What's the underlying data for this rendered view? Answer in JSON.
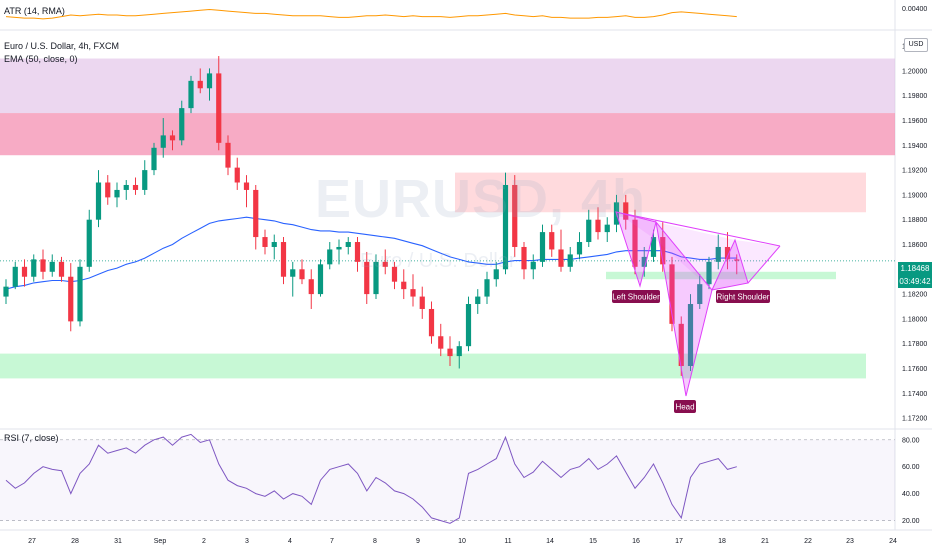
{
  "header": {
    "atr_label": "ATR (14, RMA)",
    "symbol_label": "Euro / U.S. Dollar, 4h, FXCM",
    "ema_label": "EMA (50, close, 0)",
    "rsi_label": "RSI (7, close)",
    "currency_badge": "USD",
    "watermark": "EURUSD, 4h",
    "watermark_sub": "Euro / U.S. Dollar"
  },
  "price_tag": {
    "price": "1.18468",
    "countdown": "03:49:42",
    "color": "#089981"
  },
  "annotations": {
    "left_shoulder": "Left Shoulder",
    "right_shoulder": "Right Shoulder",
    "head": "Head"
  },
  "colors": {
    "up": "#089981",
    "down": "#f23645",
    "ema": "#2962ff",
    "atr": "#ff9800",
    "rsi": "#7e57c2",
    "pattern": "#e040fb"
  },
  "chart_data": [
    {
      "type": "candlestick",
      "title": "Euro / U.S. Dollar, 4h, FXCM",
      "x_tick_labels": [
        "27",
        "28",
        "31",
        "Sep",
        "2",
        "3",
        "4",
        "7",
        "8",
        "9",
        "10",
        "11",
        "14",
        "15",
        "16",
        "17",
        "18",
        "21",
        "22",
        "23",
        "24"
      ],
      "y_tick_labels": [
        "1.20200",
        "1.20000",
        "1.19800",
        "1.19600",
        "1.19400",
        "1.19200",
        "1.19000",
        "1.18800",
        "1.18600",
        "1.18400",
        "1.18200",
        "1.18000",
        "1.17800",
        "1.17600",
        "1.17400",
        "1.17200"
      ],
      "ylim": [
        1.1712,
        1.2033
      ],
      "last_price": 1.18468,
      "candles": [
        [
          1.1818,
          1.1832,
          1.1812,
          1.1826
        ],
        [
          1.1826,
          1.1846,
          1.1824,
          1.1842
        ],
        [
          1.1842,
          1.1848,
          1.1826,
          1.1834
        ],
        [
          1.1834,
          1.1852,
          1.183,
          1.1848
        ],
        [
          1.1848,
          1.1856,
          1.1832,
          1.1838
        ],
        [
          1.1838,
          1.1852,
          1.1834,
          1.1846
        ],
        [
          1.1846,
          1.185,
          1.183,
          1.1834
        ],
        [
          1.1834,
          1.1845,
          1.179,
          1.1798
        ],
        [
          1.1798,
          1.1848,
          1.1794,
          1.1842
        ],
        [
          1.1842,
          1.1888,
          1.1838,
          1.188
        ],
        [
          1.188,
          1.192,
          1.1874,
          1.191
        ],
        [
          1.191,
          1.1916,
          1.1892,
          1.1898
        ],
        [
          1.1898,
          1.191,
          1.189,
          1.1904
        ],
        [
          1.1904,
          1.1912,
          1.1896,
          1.1908
        ],
        [
          1.1908,
          1.1914,
          1.19,
          1.1904
        ],
        [
          1.1904,
          1.1928,
          1.19,
          1.192
        ],
        [
          1.192,
          1.1942,
          1.1916,
          1.1938
        ],
        [
          1.1938,
          1.1962,
          1.193,
          1.1948
        ],
        [
          1.1948,
          1.1952,
          1.1936,
          1.1944
        ],
        [
          1.1944,
          1.1976,
          1.194,
          1.197
        ],
        [
          1.197,
          1.1996,
          1.1966,
          1.1992
        ],
        [
          1.1992,
          1.2002,
          1.1982,
          1.1986
        ],
        [
          1.1986,
          1.2002,
          1.1976,
          1.1998
        ],
        [
          1.1998,
          1.2012,
          1.1936,
          1.1942
        ],
        [
          1.1942,
          1.1948,
          1.1916,
          1.1922
        ],
        [
          1.1922,
          1.193,
          1.1904,
          1.191
        ],
        [
          1.191,
          1.1916,
          1.189,
          1.1904
        ],
        [
          1.1904,
          1.1908,
          1.1856,
          1.1866
        ],
        [
          1.1866,
          1.1872,
          1.1852,
          1.1858
        ],
        [
          1.1858,
          1.1868,
          1.1848,
          1.1862
        ],
        [
          1.1862,
          1.1866,
          1.1828,
          1.1834
        ],
        [
          1.1834,
          1.1846,
          1.1818,
          1.184
        ],
        [
          1.184,
          1.1848,
          1.1828,
          1.1832
        ],
        [
          1.1832,
          1.184,
          1.1808,
          1.182
        ],
        [
          1.182,
          1.1848,
          1.1818,
          1.1844
        ],
        [
          1.1844,
          1.1862,
          1.184,
          1.1856
        ],
        [
          1.1856,
          1.1864,
          1.1844,
          1.1858
        ],
        [
          1.1858,
          1.1866,
          1.1852,
          1.1862
        ],
        [
          1.1862,
          1.1866,
          1.1838,
          1.1846
        ],
        [
          1.1846,
          1.1854,
          1.1812,
          1.182
        ],
        [
          1.182,
          1.1852,
          1.1816,
          1.1846
        ],
        [
          1.1846,
          1.1856,
          1.1836,
          1.1842
        ],
        [
          1.1842,
          1.1846,
          1.1824,
          1.183
        ],
        [
          1.183,
          1.184,
          1.1816,
          1.1824
        ],
        [
          1.1824,
          1.1836,
          1.181,
          1.1818
        ],
        [
          1.1818,
          1.1826,
          1.18,
          1.1808
        ],
        [
          1.1808,
          1.1814,
          1.178,
          1.1786
        ],
        [
          1.1786,
          1.1796,
          1.177,
          1.1776
        ],
        [
          1.1776,
          1.1786,
          1.1762,
          1.177
        ],
        [
          1.177,
          1.1782,
          1.176,
          1.1778
        ],
        [
          1.1778,
          1.1818,
          1.1774,
          1.1812
        ],
        [
          1.1812,
          1.1824,
          1.1804,
          1.1818
        ],
        [
          1.1818,
          1.1838,
          1.1812,
          1.1832
        ],
        [
          1.1832,
          1.1846,
          1.1826,
          1.184
        ],
        [
          1.184,
          1.1918,
          1.1836,
          1.1908
        ],
        [
          1.1908,
          1.1916,
          1.185,
          1.1858
        ],
        [
          1.1858,
          1.1862,
          1.1832,
          1.184
        ],
        [
          1.184,
          1.1852,
          1.1832,
          1.1846
        ],
        [
          1.1846,
          1.1876,
          1.1842,
          1.187
        ],
        [
          1.187,
          1.1876,
          1.185,
          1.1856
        ],
        [
          1.1856,
          1.1872,
          1.1838,
          1.1842
        ],
        [
          1.1842,
          1.1858,
          1.1838,
          1.1852
        ],
        [
          1.1852,
          1.187,
          1.1848,
          1.1862
        ],
        [
          1.1862,
          1.1888,
          1.1858,
          1.188
        ],
        [
          1.188,
          1.189,
          1.1864,
          1.187
        ],
        [
          1.187,
          1.1882,
          1.1862,
          1.1876
        ],
        [
          1.1876,
          1.19,
          1.187,
          1.1894
        ],
        [
          1.1894,
          1.19,
          1.1872,
          1.188
        ],
        [
          1.188,
          1.1888,
          1.1836,
          1.1842
        ],
        [
          1.1842,
          1.1858,
          1.1834,
          1.185
        ],
        [
          1.185,
          1.1872,
          1.1846,
          1.1866
        ],
        [
          1.1866,
          1.1878,
          1.1838,
          1.1844
        ],
        [
          1.1844,
          1.185,
          1.179,
          1.1796
        ],
        [
          1.1796,
          1.1802,
          1.1754,
          1.1762
        ],
        [
          1.1762,
          1.182,
          1.1758,
          1.1812
        ],
        [
          1.1812,
          1.1836,
          1.1808,
          1.1828
        ],
        [
          1.1828,
          1.185,
          1.1824,
          1.1846
        ],
        [
          1.1846,
          1.1868,
          1.184,
          1.1858
        ],
        [
          1.1858,
          1.187,
          1.184,
          1.1848
        ],
        [
          1.1848,
          1.1852,
          1.1836,
          1.1847
        ]
      ],
      "ema": [
        1.1824,
        1.1826,
        1.1827,
        1.1829,
        1.183,
        1.1831,
        1.1831,
        1.183,
        1.1831,
        1.1833,
        1.1836,
        1.1839,
        1.1841,
        1.1844,
        1.1846,
        1.1849,
        1.1853,
        1.1857,
        1.186,
        1.1865,
        1.1869,
        1.1873,
        1.1877,
        1.1879,
        1.188,
        1.1881,
        1.1882,
        1.1881,
        1.188,
        1.1879,
        1.1877,
        1.1876,
        1.1874,
        1.1872,
        1.1871,
        1.1871,
        1.187,
        1.187,
        1.1869,
        1.1868,
        1.1867,
        1.1866,
        1.1865,
        1.1863,
        1.1861,
        1.1859,
        1.1856,
        1.1853,
        1.185,
        1.1848,
        1.1846,
        1.1845,
        1.1844,
        1.1844,
        1.1846,
        1.1847,
        1.1847,
        1.1847,
        1.1848,
        1.1848,
        1.1848,
        1.1848,
        1.1849,
        1.185,
        1.1851,
        1.1852,
        1.1854,
        1.1855,
        1.1855,
        1.1855,
        1.1855,
        1.1855,
        1.1853,
        1.185,
        1.1849,
        1.1848,
        1.1848,
        1.1849,
        1.1849,
        1.1849
      ],
      "zones": [
        {
          "name": "upper-purple-zone",
          "y_top": 1.201,
          "y_bottom": 1.1966,
          "color": "#e1bee7"
        },
        {
          "name": "upper-red-zone",
          "y_top": 1.1966,
          "y_bottom": 1.1932,
          "color": "#f48fb1"
        },
        {
          "name": "mid-red-zone",
          "y_top": 1.1918,
          "y_bottom": 1.1886,
          "color": "#ffcdd2"
        },
        {
          "name": "lower-green-zone",
          "y_top": 1.1772,
          "y_bottom": 1.1752,
          "color": "#b9f6ca"
        },
        {
          "name": "neckline-zone",
          "y_top": 1.1838,
          "y_bottom": 1.1832,
          "color": "#b9f6ca"
        }
      ]
    },
    {
      "type": "line",
      "title": "ATR (14, RMA)",
      "y_tick_labels": [
        "0.00400"
      ],
      "ylim": [
        0.0018,
        0.0046
      ],
      "values": [
        0.003,
        0.0029,
        0.0028,
        0.0028,
        0.0027,
        0.0028,
        0.003,
        0.0032,
        0.0031,
        0.0032,
        0.0033,
        0.0032,
        0.0032,
        0.0031,
        0.0031,
        0.0032,
        0.0033,
        0.0034,
        0.0035,
        0.0036,
        0.0037,
        0.0038,
        0.0039,
        0.0038,
        0.0037,
        0.0036,
        0.0035,
        0.0034,
        0.0034,
        0.0033,
        0.0032,
        0.0031,
        0.0031,
        0.0031,
        0.0031,
        0.003,
        0.0029,
        0.0029,
        0.003,
        0.0031,
        0.0031,
        0.0032,
        0.0031,
        0.003,
        0.0031,
        0.003,
        0.003,
        0.003,
        0.0029,
        0.003,
        0.0031,
        0.0031,
        0.0032,
        0.0033,
        0.0034,
        0.0032,
        0.0031,
        0.003,
        0.0031,
        0.0029,
        0.0029,
        0.0028,
        0.0028,
        0.0028,
        0.0029,
        0.0029,
        0.003,
        0.0031,
        0.0029,
        0.0029,
        0.003,
        0.0032,
        0.0035,
        0.0036,
        0.0035,
        0.0034,
        0.0033,
        0.0032,
        0.0031,
        0.003
      ]
    },
    {
      "type": "line",
      "title": "RSI (7, close)",
      "y_tick_labels": [
        "80.00",
        "60.00",
        "40.00",
        "20.00"
      ],
      "ylim": [
        13,
        88
      ],
      "band": [
        20,
        80
      ],
      "values": [
        50,
        44,
        48,
        55,
        60,
        58,
        57,
        40,
        55,
        62,
        76,
        70,
        72,
        74,
        70,
        76,
        80,
        82,
        76,
        82,
        84,
        78,
        80,
        62,
        50,
        46,
        44,
        40,
        38,
        42,
        36,
        40,
        38,
        32,
        50,
        58,
        60,
        62,
        55,
        42,
        52,
        48,
        42,
        40,
        36,
        30,
        22,
        20,
        18,
        22,
        55,
        58,
        62,
        66,
        82,
        62,
        52,
        56,
        64,
        58,
        52,
        58,
        60,
        66,
        58,
        62,
        68,
        56,
        44,
        52,
        62,
        48,
        32,
        22,
        52,
        62,
        64,
        66,
        58,
        60
      ]
    }
  ]
}
